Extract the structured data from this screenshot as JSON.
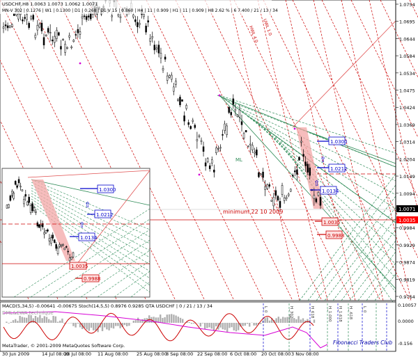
{
  "window": {
    "symbol_line": "USDCHF,H8 1.0063 1.0073 1.0062 1.0071",
    "indicator_line": "MN-V 302 | 0.1276 | W1 | 0.1300 | D1 | 0.268 | D1 V 15 | 0.860 | H4 | 11 | 0.909 | H1 | 11 | 0.909 | H8 2.62 % | 6 7.400 / 21 / 13 / 34"
  },
  "price_axis": {
    "ticks": [
      "1.0754",
      "1.0695",
      "1.0644",
      "1.0584",
      "1.0534",
      "1.0475",
      "1.0424",
      "1.0369",
      "1.0314",
      "1.0204",
      "1.0149",
      "1.0094",
      "1.0039",
      "0.9984",
      "0.9929",
      "0.9874",
      "0.9819",
      "0.9764"
    ],
    "current_price": "1.0071",
    "current_price_color": "#000000",
    "alt_price": "1.0035",
    "alt_price_color": "#ff0000"
  },
  "osc_axis": {
    "ticks": [
      "0.10057",
      "0.0000",
      "-0.156"
    ]
  },
  "time_axis": {
    "labels": [
      "30 Jun 2009",
      "14 Jul 08:00",
      "28 Jul 08:00",
      "11 Aug 08:00",
      "25 Aug 08:00",
      "8 Sep 08:00",
      "22 Sep 08:00",
      "6 Oct 08:00",
      "20 Oct 08:00",
      "3 Nov 08:00"
    ]
  },
  "annotations": {
    "minimum_text": "minimum 22 10 2009",
    "level_labels": [
      "1.0300",
      "1.0212",
      "1.0134",
      "1.0035",
      "0.9988"
    ],
    "inset_level_labels": [
      "1.0300",
      "1.0212",
      "1.0134",
      "1.0035",
      "0.9988"
    ],
    "inset_red_label": "0.9988",
    "red_trend_label": "HWL 4.0",
    "uwl_label": "UWL 1.0",
    "mid_label": "ML"
  },
  "oscillator": {
    "header": "MACD(5,34,5) -0.00641 -0.00675 Stoch(14,5,5) 0.8976 0.9285 QTA USDCHF | 0 / 21 / 13 / 34",
    "technique": "DML&EWA technique",
    "vertical_labels": [
      "L_0",
      "H_302",
      "H_618",
      "H_1.000",
      "H_1.618",
      "H_.618",
      "L_0"
    ]
  },
  "footer": {
    "copyright": "MetaTrader, © 2001-2009 MetaQuotes Software Corp.",
    "club": "Fibonacci Traders Club"
  },
  "colors": {
    "bg": "#ffffff",
    "candles": "#000000",
    "red_dashed": "#cc0000",
    "green_fan": "#2e8b57",
    "blue_label": "#0000cc",
    "pink_zone": "#f3a7a7",
    "magenta": "#d600d6"
  }
}
